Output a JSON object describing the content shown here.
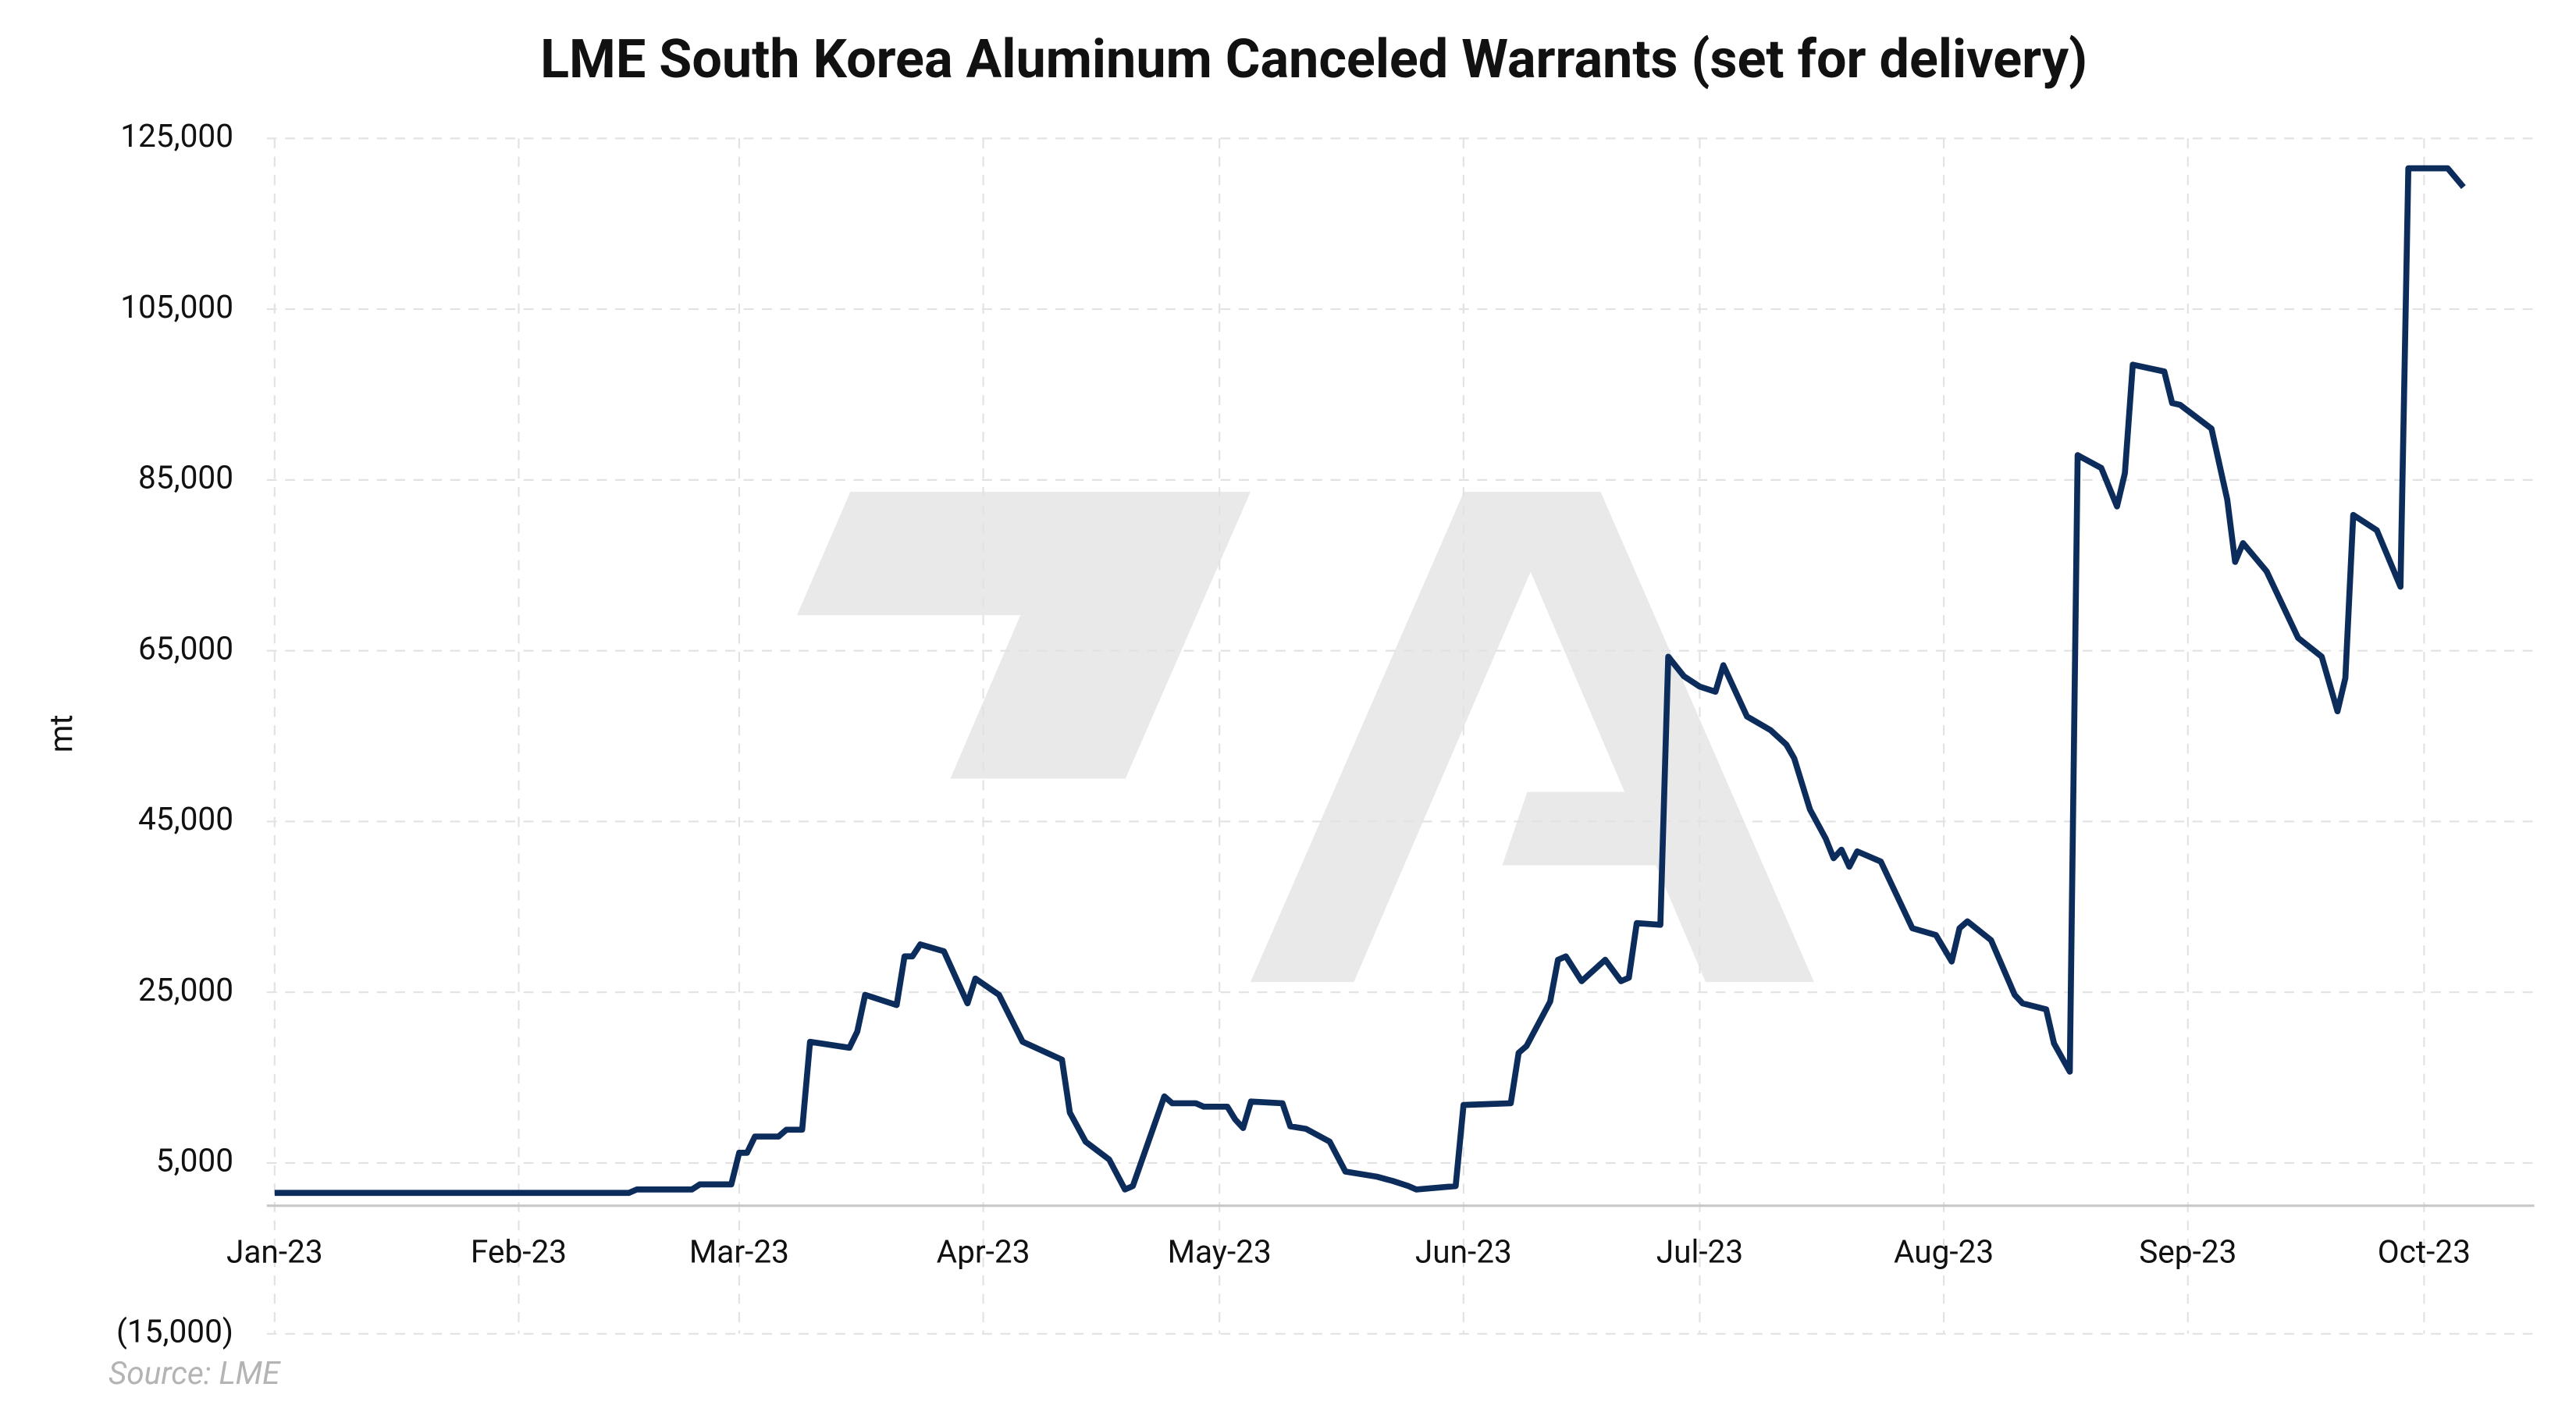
{
  "chart_data": {
    "type": "line",
    "title": "LME South Korea Aluminum Canceled Warrants (set for delivery)",
    "y_label": "mt",
    "source": "Source: LME",
    "color": "#0c2c5c",
    "grid": true,
    "ylim": [
      -15000,
      125000
    ],
    "yticks": [
      {
        "value": -15000,
        "label": "(15,000)"
      },
      {
        "value": 5000,
        "label": "5,000"
      },
      {
        "value": 25000,
        "label": "25,000"
      },
      {
        "value": 45000,
        "label": "45,000"
      },
      {
        "value": 65000,
        "label": "65,000"
      },
      {
        "value": 85000,
        "label": "85,000"
      },
      {
        "value": 105000,
        "label": "105,000"
      },
      {
        "value": 125000,
        "label": "125,000"
      }
    ],
    "xlim": [
      "2022-12-31",
      "2023-10-15"
    ],
    "xticks": [
      {
        "value": "2023-01-01",
        "label": "Jan-23"
      },
      {
        "value": "2023-02-01",
        "label": "Feb-23"
      },
      {
        "value": "2023-03-01",
        "label": "Mar-23"
      },
      {
        "value": "2023-04-01",
        "label": "Apr-23"
      },
      {
        "value": "2023-05-01",
        "label": "May-23"
      },
      {
        "value": "2023-06-01",
        "label": "Jun-23"
      },
      {
        "value": "2023-07-01",
        "label": "Jul-23"
      },
      {
        "value": "2023-08-01",
        "label": "Aug-23"
      },
      {
        "value": "2023-09-01",
        "label": "Sep-23"
      },
      {
        "value": "2023-10-01",
        "label": "Oct-23"
      }
    ],
    "x": [
      "2023-01-01",
      "2023-02-15",
      "2023-02-16",
      "2023-02-23",
      "2023-02-24",
      "2023-02-28",
      "2023-03-01",
      "2023-03-02",
      "2023-03-03",
      "2023-03-06",
      "2023-03-07",
      "2023-03-09",
      "2023-03-10",
      "2023-03-15",
      "2023-03-16",
      "2023-03-17",
      "2023-03-21",
      "2023-03-22",
      "2023-03-23",
      "2023-03-24",
      "2023-03-27",
      "2023-03-30",
      "2023-03-31",
      "2023-04-03",
      "2023-04-06",
      "2023-04-11",
      "2023-04-12",
      "2023-04-14",
      "2023-04-17",
      "2023-04-19",
      "2023-04-20",
      "2023-04-24",
      "2023-04-25",
      "2023-04-28",
      "2023-04-29",
      "2023-05-02",
      "2023-05-03",
      "2023-05-04",
      "2023-05-05",
      "2023-05-09",
      "2023-05-10",
      "2023-05-12",
      "2023-05-15",
      "2023-05-17",
      "2023-05-21",
      "2023-05-23",
      "2023-05-25",
      "2023-05-26",
      "2023-05-31",
      "2023-06-01",
      "2023-06-07",
      "2023-06-08",
      "2023-06-09",
      "2023-06-12",
      "2023-06-13",
      "2023-06-14",
      "2023-06-16",
      "2023-06-19",
      "2023-06-21",
      "2023-06-22",
      "2023-06-23",
      "2023-06-26",
      "2023-06-27",
      "2023-06-29",
      "2023-07-01",
      "2023-07-03",
      "2023-07-04",
      "2023-07-07",
      "2023-07-10",
      "2023-07-12",
      "2023-07-13",
      "2023-07-15",
      "2023-07-17",
      "2023-07-18",
      "2023-07-19",
      "2023-07-20",
      "2023-07-21",
      "2023-07-24",
      "2023-07-28",
      "2023-07-31",
      "2023-08-02",
      "2023-08-03",
      "2023-08-04",
      "2023-08-07",
      "2023-08-10",
      "2023-08-11",
      "2023-08-14",
      "2023-08-15",
      "2023-08-17",
      "2023-08-18",
      "2023-08-21",
      "2023-08-23",
      "2023-08-24",
      "2023-08-25",
      "2023-08-29",
      "2023-08-30",
      "2023-08-31",
      "2023-09-04",
      "2023-09-06",
      "2023-09-07",
      "2023-09-08",
      "2023-09-11",
      "2023-09-15",
      "2023-09-18",
      "2023-09-20",
      "2023-09-21",
      "2023-09-22",
      "2023-09-25",
      "2023-09-27",
      "2023-09-28",
      "2023-09-29",
      "2023-10-04",
      "2023-10-06"
    ],
    "values": [
      1500,
      1500,
      1900,
      1900,
      2500,
      2500,
      6200,
      6200,
      8100,
      8100,
      8900,
      8900,
      19200,
      18500,
      20400,
      24700,
      23500,
      29200,
      29200,
      30600,
      29800,
      23700,
      26600,
      24700,
      19200,
      17100,
      10900,
      7500,
      5400,
      1900,
      2300,
      12800,
      12000,
      12000,
      11600,
      11600,
      10100,
      9100,
      12200,
      12000,
      9300,
      9000,
      7500,
      4000,
      3400,
      2900,
      2300,
      1900,
      2300,
      11800,
      12000,
      17900,
      18700,
      23900,
      28800,
      29200,
      26300,
      28800,
      26300,
      26700,
      33100,
      32900,
      64300,
      62000,
      60800,
      60200,
      63300,
      57300,
      55700,
      54000,
      52400,
      46400,
      43000,
      40700,
      41700,
      39700,
      41500,
      40300,
      32500,
      31700,
      28600,
      32500,
      33300,
      31100,
      24700,
      23700,
      23000,
      19000,
      15700,
      87900,
      86400,
      81900,
      85800,
      98500,
      97700,
      94000,
      93800,
      91000,
      82700,
      75400,
      77600,
      74300,
      66500,
      64300,
      57900,
      61800,
      80900,
      79100,
      74700,
      72500,
      121500,
      121500,
      119300
    ]
  }
}
